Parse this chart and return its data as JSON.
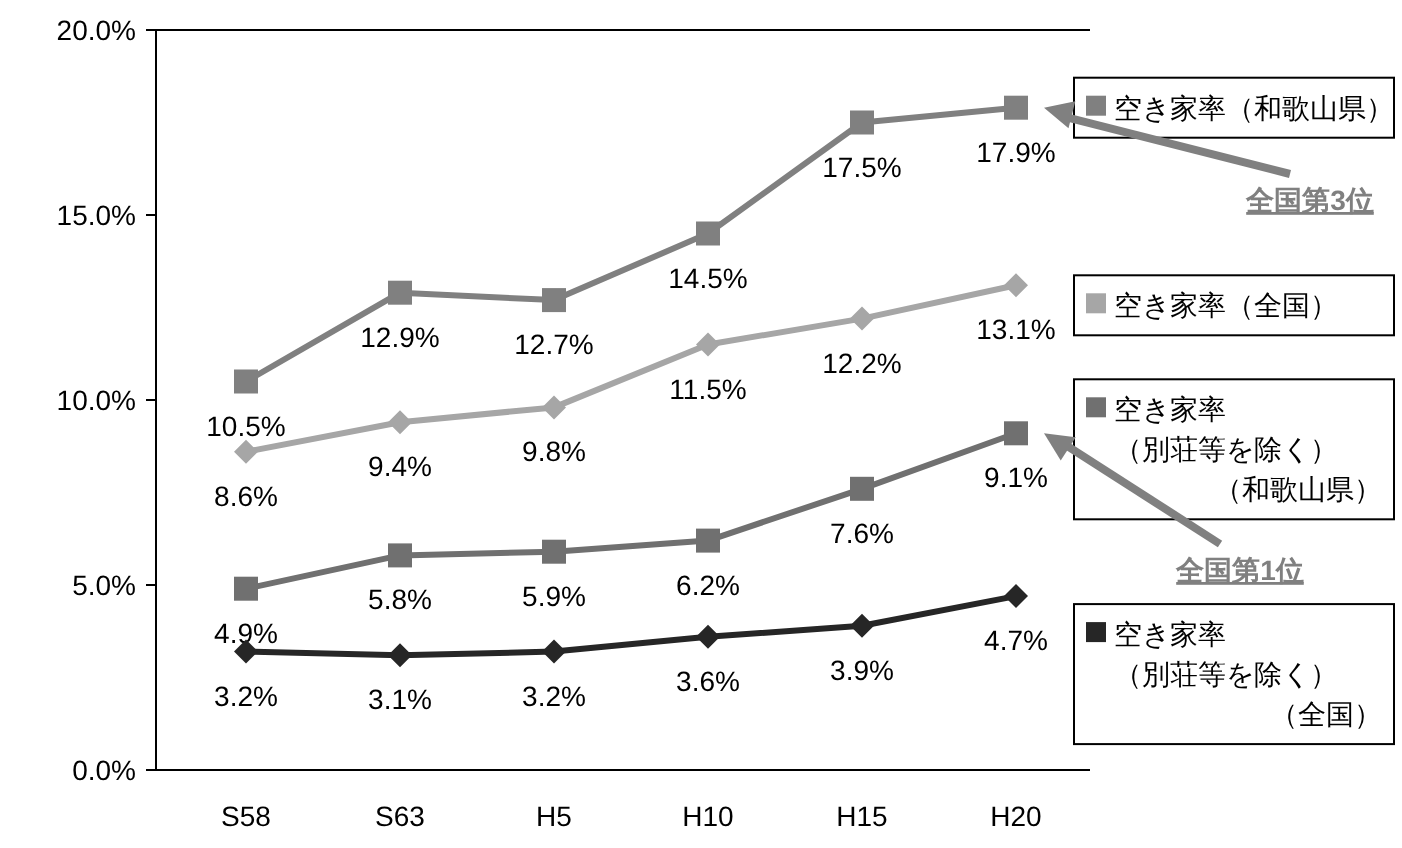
{
  "chart_data": {
    "type": "line",
    "categories": [
      "S58",
      "S63",
      "H5",
      "H10",
      "H15",
      "H20"
    ],
    "ylim": [
      0,
      20
    ],
    "yticks": [
      {
        "value": 0,
        "label": "0.0%"
      },
      {
        "value": 5,
        "label": "5.0%"
      },
      {
        "value": 10,
        "label": "10.0%"
      },
      {
        "value": 15,
        "label": "15.0%"
      },
      {
        "value": 20,
        "label": "20.0%"
      }
    ],
    "grid": false,
    "legend": "right",
    "line_style": "solid",
    "series": [
      {
        "name": "空き家率（和歌山県）",
        "color": "#808080",
        "marker": "square",
        "values": [
          10.5,
          12.9,
          12.7,
          14.5,
          17.5,
          17.9
        ],
        "value_labels": [
          "10.5%",
          "12.9%",
          "12.7%",
          "14.5%",
          "17.5%",
          "17.9%"
        ]
      },
      {
        "name": "空き家率（全国）",
        "color": "#a6a6a6",
        "marker": "diamond",
        "values": [
          8.6,
          9.4,
          9.8,
          11.5,
          12.2,
          13.1
        ],
        "value_labels": [
          "8.6%",
          "9.4%",
          "9.8%",
          "11.5%",
          "12.2%",
          "13.1%"
        ]
      },
      {
        "name": "空き家率（別荘等を除く）（和歌山県）",
        "color": "#707070",
        "marker": "square",
        "values": [
          4.9,
          5.8,
          5.9,
          6.2,
          7.6,
          9.1
        ],
        "value_labels": [
          "4.9%",
          "5.8%",
          "5.9%",
          "6.2%",
          "7.6%",
          "9.1%"
        ]
      },
      {
        "name": "空き家率（別荘等を除く）（全国）",
        "color": "#262626",
        "marker": "diamond",
        "values": [
          3.2,
          3.1,
          3.2,
          3.6,
          3.9,
          4.7
        ],
        "value_labels": [
          "3.2%",
          "3.1%",
          "3.2%",
          "3.6%",
          "3.9%",
          "4.7%"
        ]
      }
    ],
    "annotations": [
      "全国第3位",
      "全国第1位"
    ]
  }
}
